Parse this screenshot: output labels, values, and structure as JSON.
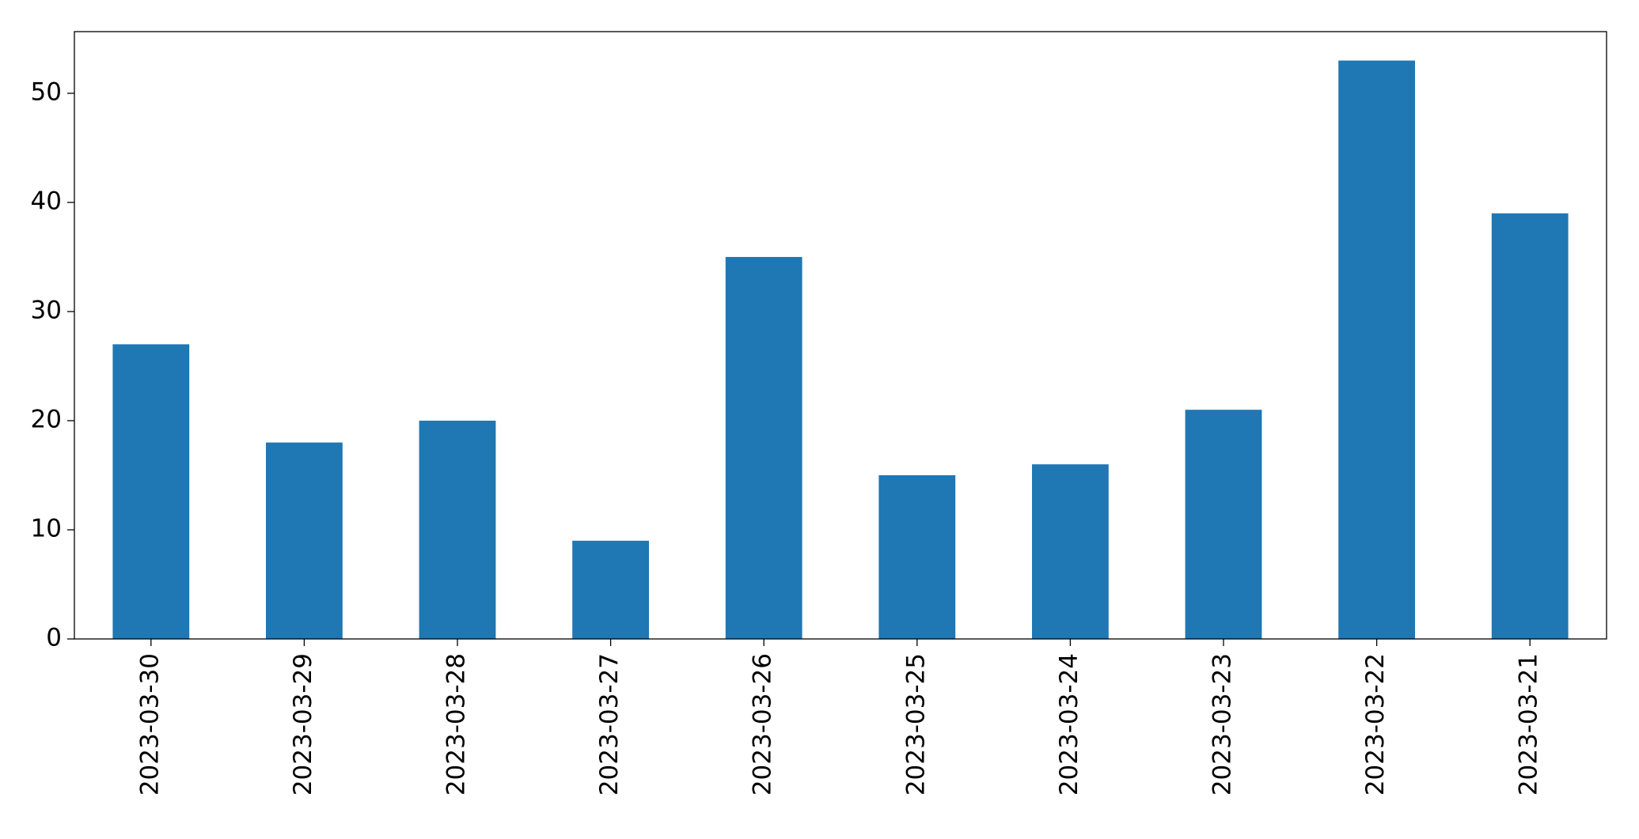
{
  "chart_data": {
    "type": "bar",
    "categories": [
      "2023-03-30",
      "2023-03-29",
      "2023-03-28",
      "2023-03-27",
      "2023-03-26",
      "2023-03-25",
      "2023-03-24",
      "2023-03-23",
      "2023-03-22",
      "2023-03-21"
    ],
    "values": [
      27,
      18,
      20,
      9,
      35,
      15,
      16,
      21,
      53,
      39
    ],
    "color": "#1f77b4",
    "ylim": [
      0,
      55.65
    ],
    "yticks": [
      0,
      10,
      20,
      30,
      40,
      50
    ],
    "grid": false
  }
}
